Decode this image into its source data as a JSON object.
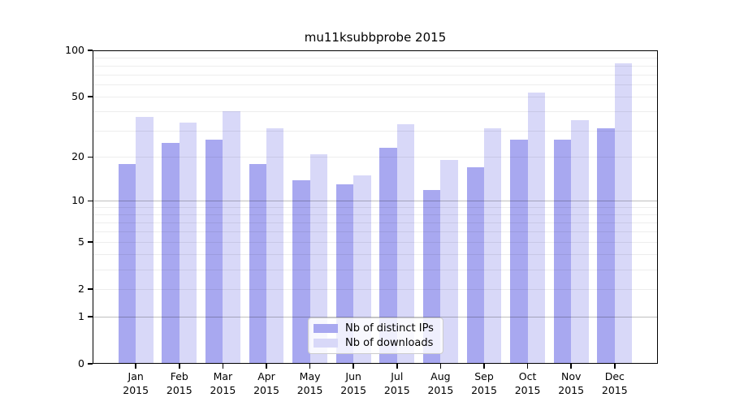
{
  "figure": {
    "background_color": "#ffffff",
    "text_color": "#000000"
  },
  "chart_data": {
    "type": "bar",
    "title": "mu11ksubbprobe 2015",
    "categories": [
      "Jan",
      "Feb",
      "Mar",
      "Apr",
      "May",
      "Jun",
      "Jul",
      "Aug",
      "Sep",
      "Oct",
      "Nov",
      "Dec"
    ],
    "category_year": "2015",
    "series": [
      {
        "name": "Nb of distinct IPs",
        "color": "#a8a8f0",
        "values": [
          18,
          25,
          26,
          18,
          14,
          13,
          23,
          12,
          17,
          26,
          26,
          31
        ]
      },
      {
        "name": "Nb of downloads",
        "color": "#d8d8f8",
        "values": [
          37,
          34,
          40,
          31,
          21,
          15,
          33,
          19,
          31,
          53,
          35,
          82
        ]
      }
    ],
    "xlabel": "",
    "ylabel": "",
    "ylim": [
      0,
      100
    ],
    "yscale": "log1p",
    "y_ticks": [
      0,
      1,
      2,
      5,
      10,
      20,
      50,
      100
    ],
    "y_major_gridlines": [
      1,
      10
    ],
    "y_minor_gridlines": [
      2,
      3,
      4,
      5,
      6,
      7,
      8,
      9,
      20,
      30,
      40,
      50,
      60,
      70,
      80,
      90
    ],
    "grid": "horizontal gridlines drawn over bars",
    "legend_position": "lower center inside plot",
    "bar_width_fraction": 0.4
  }
}
